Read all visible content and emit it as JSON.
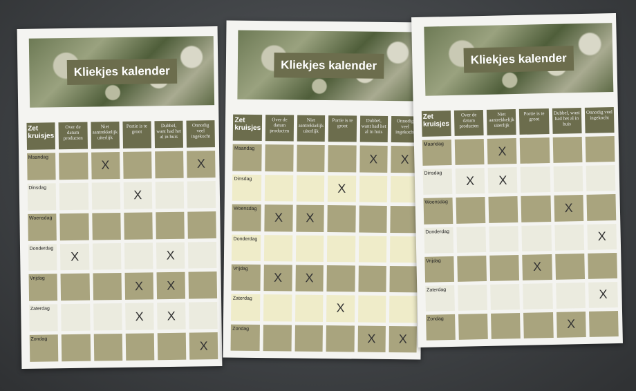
{
  "sheets": [
    {
      "title": "Kliekjes kalender",
      "corner": "Zet kruisjes",
      "columns": [
        "Over de datum producten",
        "Niet aantrekkelijk uiterlijk",
        "Portie is te groot",
        "Dubbel, want had het al in huis",
        "Onnodig veel ingekocht"
      ],
      "rows": [
        {
          "day": "Maandag",
          "marks": [
            false,
            true,
            false,
            false,
            true
          ]
        },
        {
          "day": "Dinsdag",
          "marks": [
            false,
            false,
            true,
            false,
            false
          ]
        },
        {
          "day": "Woensdag",
          "marks": [
            false,
            false,
            false,
            false,
            false
          ]
        },
        {
          "day": "Donderdag",
          "marks": [
            true,
            false,
            false,
            true,
            false
          ]
        },
        {
          "day": "Vrijdag",
          "marks": [
            false,
            false,
            true,
            true,
            false
          ]
        },
        {
          "day": "Zaterdag",
          "marks": [
            false,
            false,
            true,
            true,
            false
          ]
        },
        {
          "day": "Zondag",
          "marks": [
            false,
            false,
            false,
            false,
            true
          ]
        }
      ]
    },
    {
      "title": "Kliekjes kalender",
      "corner": "Zet kruisjes",
      "columns": [
        "Over de datum producten",
        "Niet aantrekkelijk uiterlijk",
        "Portie is te groot",
        "Dubbel, want had het al in huis",
        "Onnodig veel ingekocht"
      ],
      "rows": [
        {
          "day": "Maandag",
          "marks": [
            false,
            false,
            false,
            true,
            true
          ]
        },
        {
          "day": "Dinsdag",
          "marks": [
            false,
            false,
            true,
            false,
            false
          ]
        },
        {
          "day": "Woensdag",
          "marks": [
            true,
            true,
            false,
            false,
            false
          ]
        },
        {
          "day": "Donderdag",
          "marks": [
            false,
            false,
            false,
            false,
            false
          ]
        },
        {
          "day": "Vrijdag",
          "marks": [
            true,
            true,
            false,
            false,
            false
          ]
        },
        {
          "day": "Zaterdag",
          "marks": [
            false,
            false,
            true,
            false,
            false
          ]
        },
        {
          "day": "Zondag",
          "marks": [
            false,
            false,
            false,
            true,
            true
          ]
        }
      ]
    },
    {
      "title": "Kliekjes kalender",
      "corner": "Zet kruisjes",
      "columns": [
        "Over de datum producten",
        "Niet aantrekkelijk uiterlijk",
        "Portie is te groot",
        "Dubbel, want had het al in huis",
        "Onnodig veel ingekocht"
      ],
      "rows": [
        {
          "day": "Maandag",
          "marks": [
            false,
            true,
            false,
            false,
            false
          ]
        },
        {
          "day": "Dinsdag",
          "marks": [
            true,
            true,
            false,
            false,
            false
          ]
        },
        {
          "day": "Woensdag",
          "marks": [
            false,
            false,
            false,
            true,
            false
          ]
        },
        {
          "day": "Donderdag",
          "marks": [
            false,
            false,
            false,
            false,
            true
          ]
        },
        {
          "day": "Vrijdag",
          "marks": [
            false,
            false,
            true,
            false,
            false
          ]
        },
        {
          "day": "Zaterdag",
          "marks": [
            false,
            false,
            false,
            false,
            true
          ]
        },
        {
          "day": "Zondag",
          "marks": [
            false,
            false,
            false,
            true,
            false
          ]
        }
      ]
    }
  ],
  "mark_glyph": "X",
  "colors": {
    "header": "#6c6d4d",
    "dark_row": "#a9a47e",
    "light_row": "#ebebdf",
    "background": "#3e4144"
  }
}
